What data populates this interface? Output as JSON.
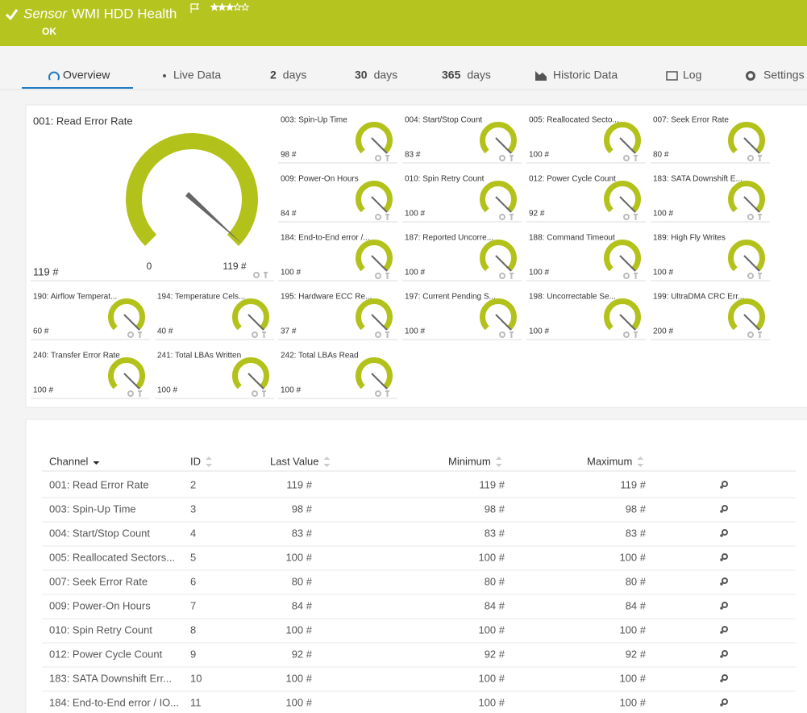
{
  "header": {
    "sensor_label": "Sensor",
    "title": "WMI HDD Health",
    "status": "OK"
  },
  "tabs": [
    {
      "label": "Overview"
    },
    {
      "label": "Live Data"
    },
    {
      "number": "2",
      "label": "days"
    },
    {
      "number": "30",
      "label": "days"
    },
    {
      "number": "365",
      "label": "days"
    },
    {
      "label": "Historic Data"
    },
    {
      "label": "Log"
    },
    {
      "label": "Settings"
    }
  ],
  "main_gauge": {
    "name": "001: Read Error Rate",
    "value": "119 #",
    "min": "0",
    "max": "119 #"
  },
  "gauges": [
    {
      "name": "003: Spin-Up Time",
      "value": "98 #"
    },
    {
      "name": "004: Start/Stop Count",
      "value": "83 #"
    },
    {
      "name": "005: Reallocated Secto...",
      "value": "100 #"
    },
    {
      "name": "007: Seek Error Rate",
      "value": "80 #"
    },
    {
      "name": "009: Power-On Hours",
      "value": "84 #"
    },
    {
      "name": "010: Spin Retry Count",
      "value": "100 #"
    },
    {
      "name": "012: Power Cycle Count",
      "value": "92 #"
    },
    {
      "name": "183: SATA Downshift E...",
      "value": "100 #"
    },
    {
      "name": "184: End-to-End error /...",
      "value": "100 #"
    },
    {
      "name": "187: Reported Uncorre...",
      "value": "100 #"
    },
    {
      "name": "188: Command Timeout",
      "value": "100 #"
    },
    {
      "name": "189: High Fly Writes",
      "value": "100 #"
    },
    {
      "name": "190: Airflow Temperat...",
      "value": "60 #"
    },
    {
      "name": "194: Temperature Cels...",
      "value": "40 #"
    },
    {
      "name": "195: Hardware ECC Re...",
      "value": "37 #"
    },
    {
      "name": "197: Current Pending S...",
      "value": "100 #"
    },
    {
      "name": "198: Uncorrectable Se...",
      "value": "100 #"
    },
    {
      "name": "199: UltraDMA CRC Err...",
      "value": "200 #"
    },
    {
      "name": "240: Transfer Error Rate",
      "value": "100 #"
    },
    {
      "name": "241: Total LBAs Written",
      "value": "100 #"
    },
    {
      "name": "242: Total LBAs Read",
      "value": "100 #"
    }
  ],
  "table": {
    "columns": [
      "Channel",
      "ID",
      "Last Value",
      "Minimum",
      "Maximum"
    ],
    "rows": [
      [
        "001: Read Error Rate",
        2,
        "119 #",
        "119 #",
        "119 #"
      ],
      [
        "003: Spin-Up Time",
        3,
        "98 #",
        "98 #",
        "98 #"
      ],
      [
        "004: Start/Stop Count",
        4,
        "83 #",
        "83 #",
        "83 #"
      ],
      [
        "005: Reallocated Sectors...",
        5,
        "100 #",
        "100 #",
        "100 #"
      ],
      [
        "007: Seek Error Rate",
        6,
        "80 #",
        "80 #",
        "80 #"
      ],
      [
        "009: Power-On Hours",
        7,
        "84 #",
        "84 #",
        "84 #"
      ],
      [
        "010: Spin Retry Count",
        8,
        "100 #",
        "100 #",
        "100 #"
      ],
      [
        "012: Power Cycle Count",
        9,
        "92 #",
        "92 #",
        "92 #"
      ],
      [
        "183: SATA Downshift Err...",
        10,
        "100 #",
        "100 #",
        "100 #"
      ],
      [
        "184: End-to-End error / IO...",
        11,
        "100 #",
        "100 #",
        "100 #"
      ]
    ]
  }
}
